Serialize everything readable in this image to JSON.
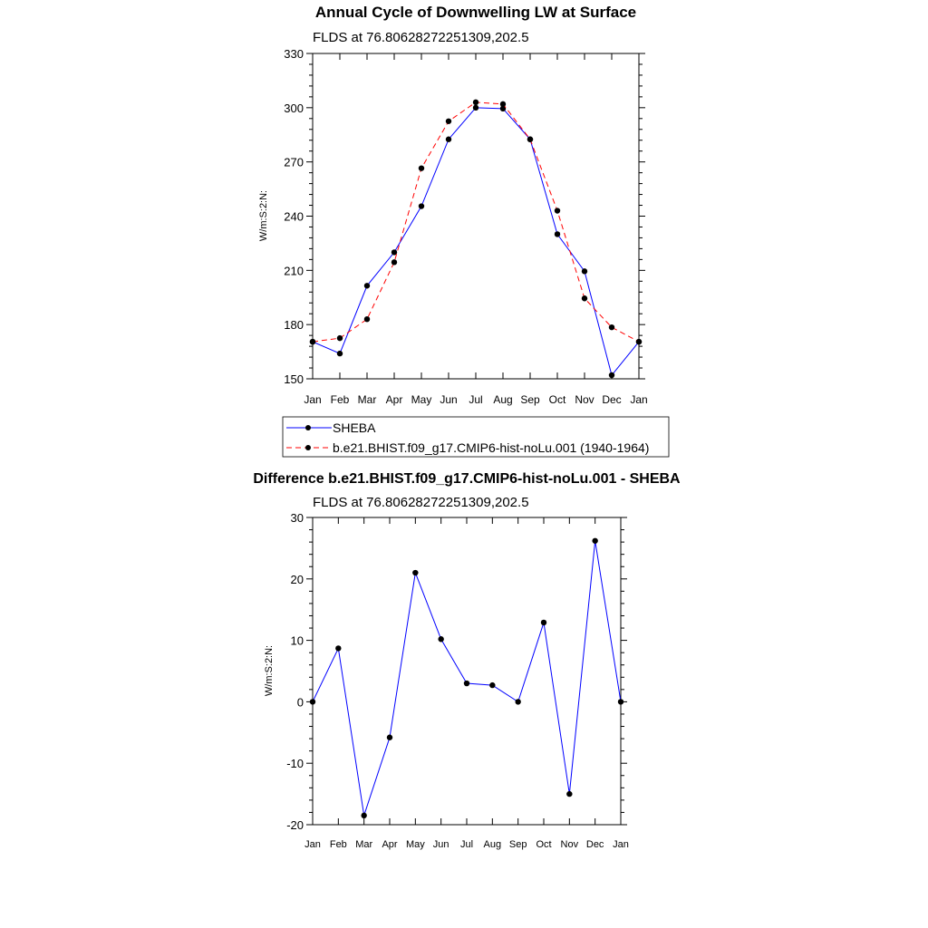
{
  "chart_data": [
    {
      "type": "line",
      "title": "Annual Cycle of Downwelling LW at Surface",
      "subtitle": "FLDS at 76.80628272251309,202.5",
      "ylabel": "W/m:S:2:N:",
      "xlabel": "",
      "categories": [
        "Jan",
        "Feb",
        "Mar",
        "Apr",
        "May",
        "Jun",
        "Jul",
        "Aug",
        "Sep",
        "Oct",
        "Nov",
        "Dec",
        "Jan"
      ],
      "ylim": [
        150,
        330
      ],
      "yticks": [
        "150",
        "180",
        "210",
        "240",
        "270",
        "300",
        "330"
      ],
      "series": [
        {
          "name": "SHEBA",
          "color": "#0000ff",
          "dash": "solid",
          "values": [
            170.5,
            164,
            201.5,
            220,
            245.5,
            282.5,
            300,
            299.5,
            282.5,
            230,
            209.5,
            152,
            170.5
          ]
        },
        {
          "name": "b.e21.BHIST.f09_g17.CMIP6-hist-noLu.001 (1940-1964)",
          "color": "#ff0000",
          "dash": "dashed",
          "values": [
            170.5,
            172.5,
            183,
            214.5,
            266.5,
            292.5,
            303,
            302,
            282.5,
            243,
            194.5,
            178.5,
            170.5
          ]
        }
      ],
      "legend": "below"
    },
    {
      "type": "line",
      "title": "Difference b.e21.BHIST.f09_g17.CMIP6-hist-noLu.001 - SHEBA",
      "subtitle": "FLDS at 76.80628272251309,202.5",
      "ylabel": "W/m:S:2:N:",
      "xlabel": "",
      "categories": [
        "Jan",
        "Feb",
        "Mar",
        "Apr",
        "May",
        "Jun",
        "Jul",
        "Aug",
        "Sep",
        "Oct",
        "Nov",
        "Dec",
        "Jan"
      ],
      "ylim": [
        -20,
        30
      ],
      "yticks": [
        "-20",
        "-10",
        "0",
        "10",
        "20",
        "30"
      ],
      "series": [
        {
          "color": "#0000ff",
          "values": [
            0,
            8.7,
            -18.5,
            -5.8,
            21,
            10.2,
            3,
            2.7,
            0,
            12.9,
            -15,
            26.2,
            0
          ]
        }
      ]
    }
  ]
}
